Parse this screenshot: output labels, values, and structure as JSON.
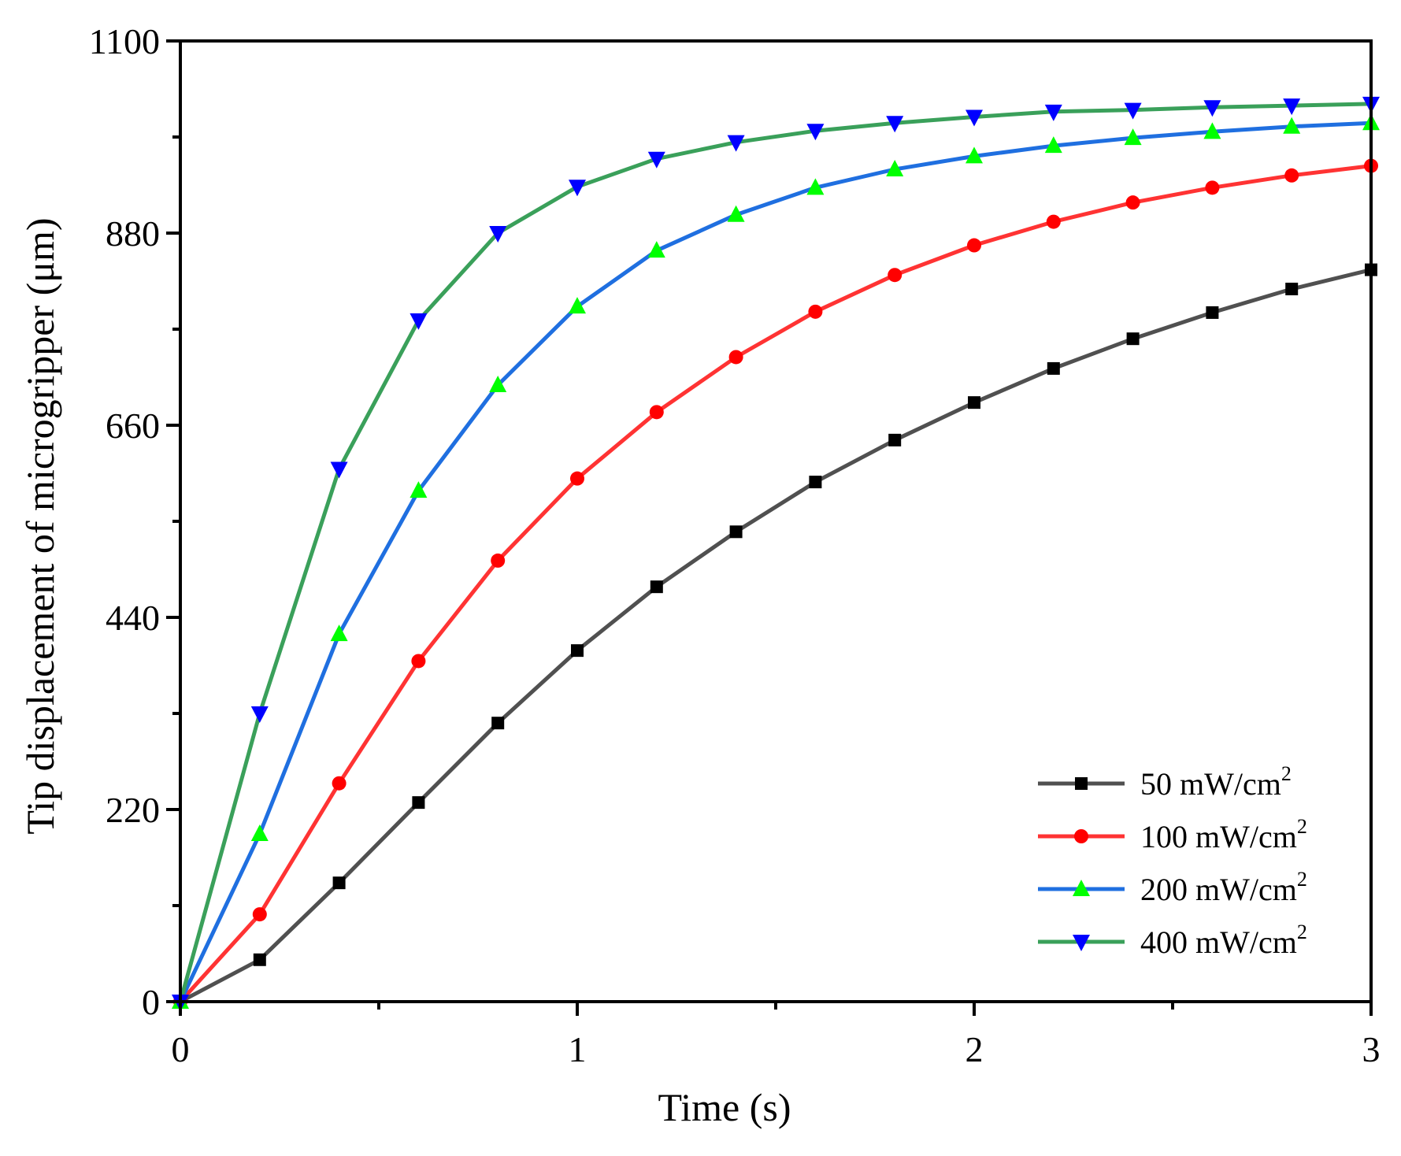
{
  "chart_data": {
    "type": "line",
    "title": "",
    "xlabel": "Time (s)",
    "ylabel": "Tip displacement of microgripper (μm)",
    "xlim": [
      0,
      3
    ],
    "ylim": [
      0,
      1100
    ],
    "xticks": [
      0,
      1,
      2,
      3
    ],
    "yticks": [
      0,
      220,
      440,
      660,
      880,
      1100
    ],
    "xtick_labels": [
      "0",
      "1",
      "2",
      "3"
    ],
    "ytick_labels": [
      "0",
      "220",
      "440",
      "660",
      "880",
      "1100"
    ],
    "legend_position": "bottom-right",
    "x": [
      0,
      0.2,
      0.4,
      0.6,
      0.8,
      1.0,
      1.2,
      1.4,
      1.6,
      1.8,
      2.0,
      2.2,
      2.4,
      2.6,
      2.8,
      3.0
    ],
    "series": [
      {
        "name": "50 mW/cm",
        "unit_sup": "2",
        "color": "#505050",
        "marker_color": "#000000",
        "marker": "square",
        "values": [
          0,
          48,
          136,
          228,
          319,
          402,
          475,
          538,
          595,
          643,
          686,
          725,
          759,
          789,
          816,
          838
        ]
      },
      {
        "name": "100 mW/cm",
        "unit_sup": "2",
        "color": "#ff3333",
        "marker_color": "#ff0000",
        "marker": "circle",
        "values": [
          0,
          100,
          250,
          390,
          505,
          599,
          675,
          738,
          790,
          832,
          866,
          893,
          915,
          932,
          946,
          957
        ]
      },
      {
        "name": "200 mW/cm",
        "unit_sup": "2",
        "color": "#1f6fe0",
        "marker_color": "#00ff00",
        "marker": "triangle-up",
        "values": [
          0,
          192,
          421,
          585,
          706,
          796,
          860,
          901,
          932,
          953,
          968,
          980,
          989,
          996,
          1002,
          1006
        ]
      },
      {
        "name": "400 mW/cm",
        "unit_sup": "2",
        "color": "#3aa05a",
        "marker_color": "#0000ff",
        "marker": "triangle-down",
        "values": [
          0,
          330,
          610,
          780,
          880,
          933,
          965,
          984,
          997,
          1006,
          1013,
          1019,
          1021,
          1024,
          1026,
          1028
        ]
      }
    ]
  }
}
